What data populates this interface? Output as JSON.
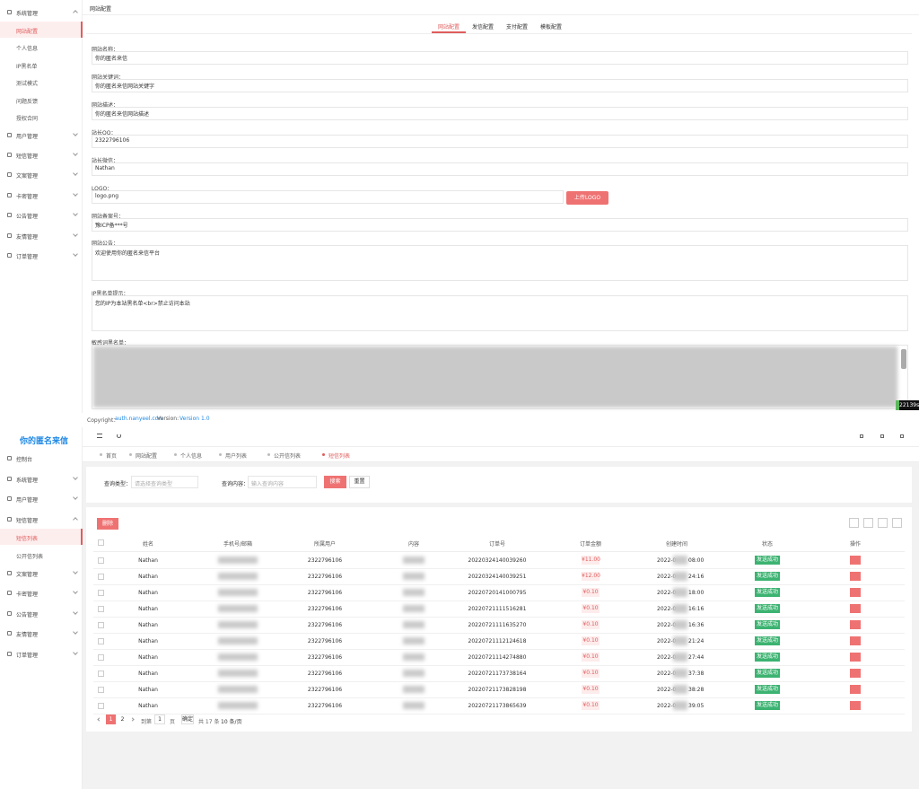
{
  "config_page": {
    "sidebar": [
      {
        "label": "系统管理",
        "items": [
          "网站配置",
          "个人信息",
          "IP黑名单",
          "测试模式",
          "问题反馈",
          "授权合同"
        ]
      },
      {
        "label": "用户管理"
      },
      {
        "label": "短信管理"
      },
      {
        "label": "文案管理"
      },
      {
        "label": "卡密管理"
      },
      {
        "label": "公告管理"
      },
      {
        "label": "友情管理"
      },
      {
        "label": "订单管理"
      }
    ],
    "title": "网站配置",
    "tabs": [
      "网站配置",
      "发信配置",
      "支付配置",
      "模板配置"
    ],
    "fields": [
      {
        "label": "网站名称：",
        "value": "你的匿名来信"
      },
      {
        "label": "网站关键词：",
        "value": "你的匿名来信网站关键字"
      },
      {
        "label": "网站描述：",
        "value": "你的匿名来信网站描述"
      },
      {
        "label": "站长QQ：",
        "value": "2322796106"
      },
      {
        "label": "站长微信：",
        "value": "Nathan"
      },
      {
        "label": "LOGO：",
        "value": "logo.png"
      },
      {
        "label": "网站备案号：",
        "value": "豫ICP备***号"
      },
      {
        "label": "网站公告：",
        "value": "欢迎使用你的匿名来信平台"
      },
      {
        "label": "IP黑名单提示：",
        "value": "您的IP为本站黑名单<br>禁止访问本站"
      },
      {
        "label": "敏感词黑名单："
      }
    ],
    "upload_button": "上传LOGO",
    "footer": {
      "copyright": "Copyright：",
      "link": "auth.nanyeel.com",
      "version_label": "Version:",
      "version": "Version 1.0"
    },
    "badge": "22139s"
  },
  "list_page": {
    "brand": "你的匿名来信",
    "sidebar": [
      {
        "label": "控制台"
      },
      {
        "label": "系统管理"
      },
      {
        "label": "用户管理"
      },
      {
        "label": "短信管理",
        "items": [
          "短信列表",
          "公开信列表"
        ]
      },
      {
        "label": "文案管理"
      },
      {
        "label": "卡密管理"
      },
      {
        "label": "公告管理"
      },
      {
        "label": "友情管理"
      },
      {
        "label": "订单管理"
      }
    ],
    "tabs": [
      "首页",
      "网站配置",
      "个人信息",
      "用户列表",
      "公开信列表",
      "短信列表"
    ],
    "search": {
      "type_label": "查询类型：",
      "type_placeholder": "请选择查询类型",
      "content_label": "查询内容：",
      "content_placeholder": "输入查询内容",
      "search": "搜索",
      "reset": "重置"
    },
    "delete_button": "删除",
    "columns": [
      "姓名",
      "手机号/邮箱",
      "所属用户",
      "内容",
      "订单号",
      "订单金额",
      "创建时间",
      "状态",
      "操作"
    ],
    "rows": [
      {
        "name": "Nathan",
        "user": "2322796106",
        "order": "20220324140039260",
        "amount": "¥11.00",
        "time_start": "2022-0",
        "time_end": "08:00",
        "status": "发送成功"
      },
      {
        "name": "Nathan",
        "user": "2322796106",
        "order": "20220324140039251",
        "amount": "¥12.00",
        "time_start": "2022-0",
        "time_end": "24:16",
        "status": "发送成功"
      },
      {
        "name": "Nathan",
        "user": "2322796106",
        "order": "20220720141000795",
        "amount": "¥0.10",
        "time_start": "2022-0",
        "time_end": "18:00",
        "status": "发送成功"
      },
      {
        "name": "Nathan",
        "user": "2322796106",
        "order": "20220721111516281",
        "amount": "¥0.10",
        "time_start": "2022-0",
        "time_end": "16:16",
        "status": "发送成功"
      },
      {
        "name": "Nathan",
        "user": "2322796106",
        "order": "20220721111635270",
        "amount": "¥0.10",
        "time_start": "2022-0",
        "time_end": "16:36",
        "status": "发送成功"
      },
      {
        "name": "Nathan",
        "user": "2322796106",
        "order": "20220721112124618",
        "amount": "¥0.10",
        "time_start": "2022-0",
        "time_end": "21:24",
        "status": "发送成功"
      },
      {
        "name": "Nathan",
        "user": "2322796106",
        "order": "20220721114274880",
        "amount": "¥0.10",
        "time_start": "2022-0",
        "time_end": "27:44",
        "status": "发送成功"
      },
      {
        "name": "Nathan",
        "user": "2322796106",
        "order": "20220721173738164",
        "amount": "¥0.10",
        "time_start": "2022-0",
        "time_end": "37:38",
        "status": "发送成功"
      },
      {
        "name": "Nathan",
        "user": "2322796106",
        "order": "20220721173828198",
        "amount": "¥0.10",
        "time_start": "2022-0",
        "time_end": "38:28",
        "status": "发送成功"
      },
      {
        "name": "Nathan",
        "user": "2322796106",
        "order": "20220721173865639",
        "amount": "¥0.10",
        "time_start": "2022-0",
        "time_end": "39:05",
        "status": "发送成功"
      }
    ],
    "pagination": {
      "pages": [
        1,
        2
      ],
      "goto": "到第",
      "page_input": 1,
      "page_unit": "页",
      "confirm": "确定",
      "total": "共 17 条",
      "page_size": "10 条/页"
    }
  }
}
